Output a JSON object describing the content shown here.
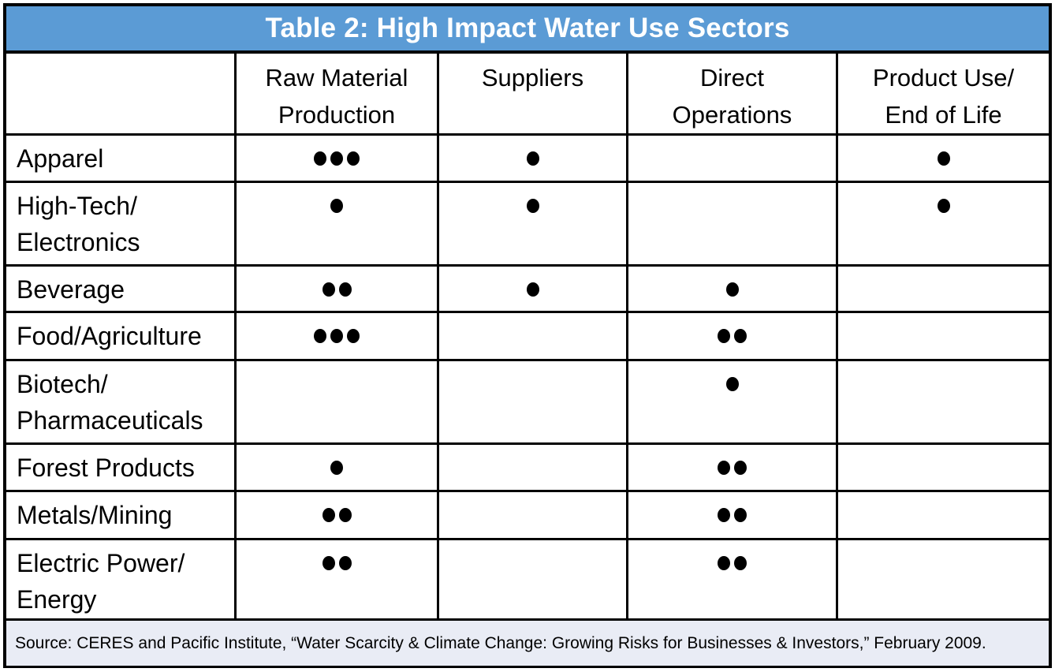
{
  "title": "Table 2: High Impact Water Use Sectors",
  "colors": {
    "title_bar_bg": "#5B9BD5",
    "title_text": "#FFFFFF",
    "border": "#000000",
    "dot": "#000000",
    "source_bar_bg": "#E9ECF5"
  },
  "columns": [
    {
      "label": "Raw Material\nProduction"
    },
    {
      "label": "Suppliers"
    },
    {
      "label": "Direct\nOperations"
    },
    {
      "label": "Product Use/\nEnd of Life"
    }
  ],
  "rows": [
    {
      "label": "Apparel",
      "dots": [
        3,
        1,
        0,
        1
      ]
    },
    {
      "label": "High-Tech/\nElectronics",
      "dots": [
        1,
        1,
        0,
        1
      ]
    },
    {
      "label": "Beverage",
      "dots": [
        2,
        1,
        1,
        0
      ]
    },
    {
      "label": "Food/Agriculture",
      "dots": [
        3,
        0,
        2,
        0
      ]
    },
    {
      "label": "Biotech/\nPharmaceuticals",
      "dots": [
        0,
        0,
        1,
        0
      ]
    },
    {
      "label": "Forest Products",
      "dots": [
        1,
        0,
        2,
        0
      ]
    },
    {
      "label": "Metals/Mining",
      "dots": [
        2,
        0,
        2,
        0
      ]
    },
    {
      "label": "Electric Power/\nEnergy",
      "dots": [
        2,
        0,
        2,
        0
      ]
    }
  ],
  "source": "Source: CERES and Pacific Institute, “Water Scarcity & Climate Change: Growing Risks for Businesses & Investors,” February 2009.",
  "chart_data": {
    "type": "table",
    "title": "Table 2: High Impact Water Use Sectors",
    "columns": [
      "Sector",
      "Raw Material Production",
      "Suppliers",
      "Direct Operations",
      "Product Use/End of Life"
    ],
    "rows": [
      [
        "Apparel",
        3,
        1,
        0,
        1
      ],
      [
        "High-Tech/Electronics",
        1,
        1,
        0,
        1
      ],
      [
        "Beverage",
        2,
        1,
        1,
        0
      ],
      [
        "Food/Agriculture",
        3,
        0,
        2,
        0
      ],
      [
        "Biotech/Pharmaceuticals",
        0,
        0,
        1,
        0
      ],
      [
        "Forest Products",
        1,
        0,
        2,
        0
      ],
      [
        "Metals/Mining",
        2,
        0,
        2,
        0
      ],
      [
        "Electric Power/Energy",
        2,
        0,
        2,
        0
      ]
    ],
    "value_meaning": "number of filled dots shown per cell (0-3)",
    "source_note": "Source: CERES and Pacific Institute, “Water Scarcity & Climate Change: Growing Risks for Businesses & Investors,” February 2009."
  }
}
